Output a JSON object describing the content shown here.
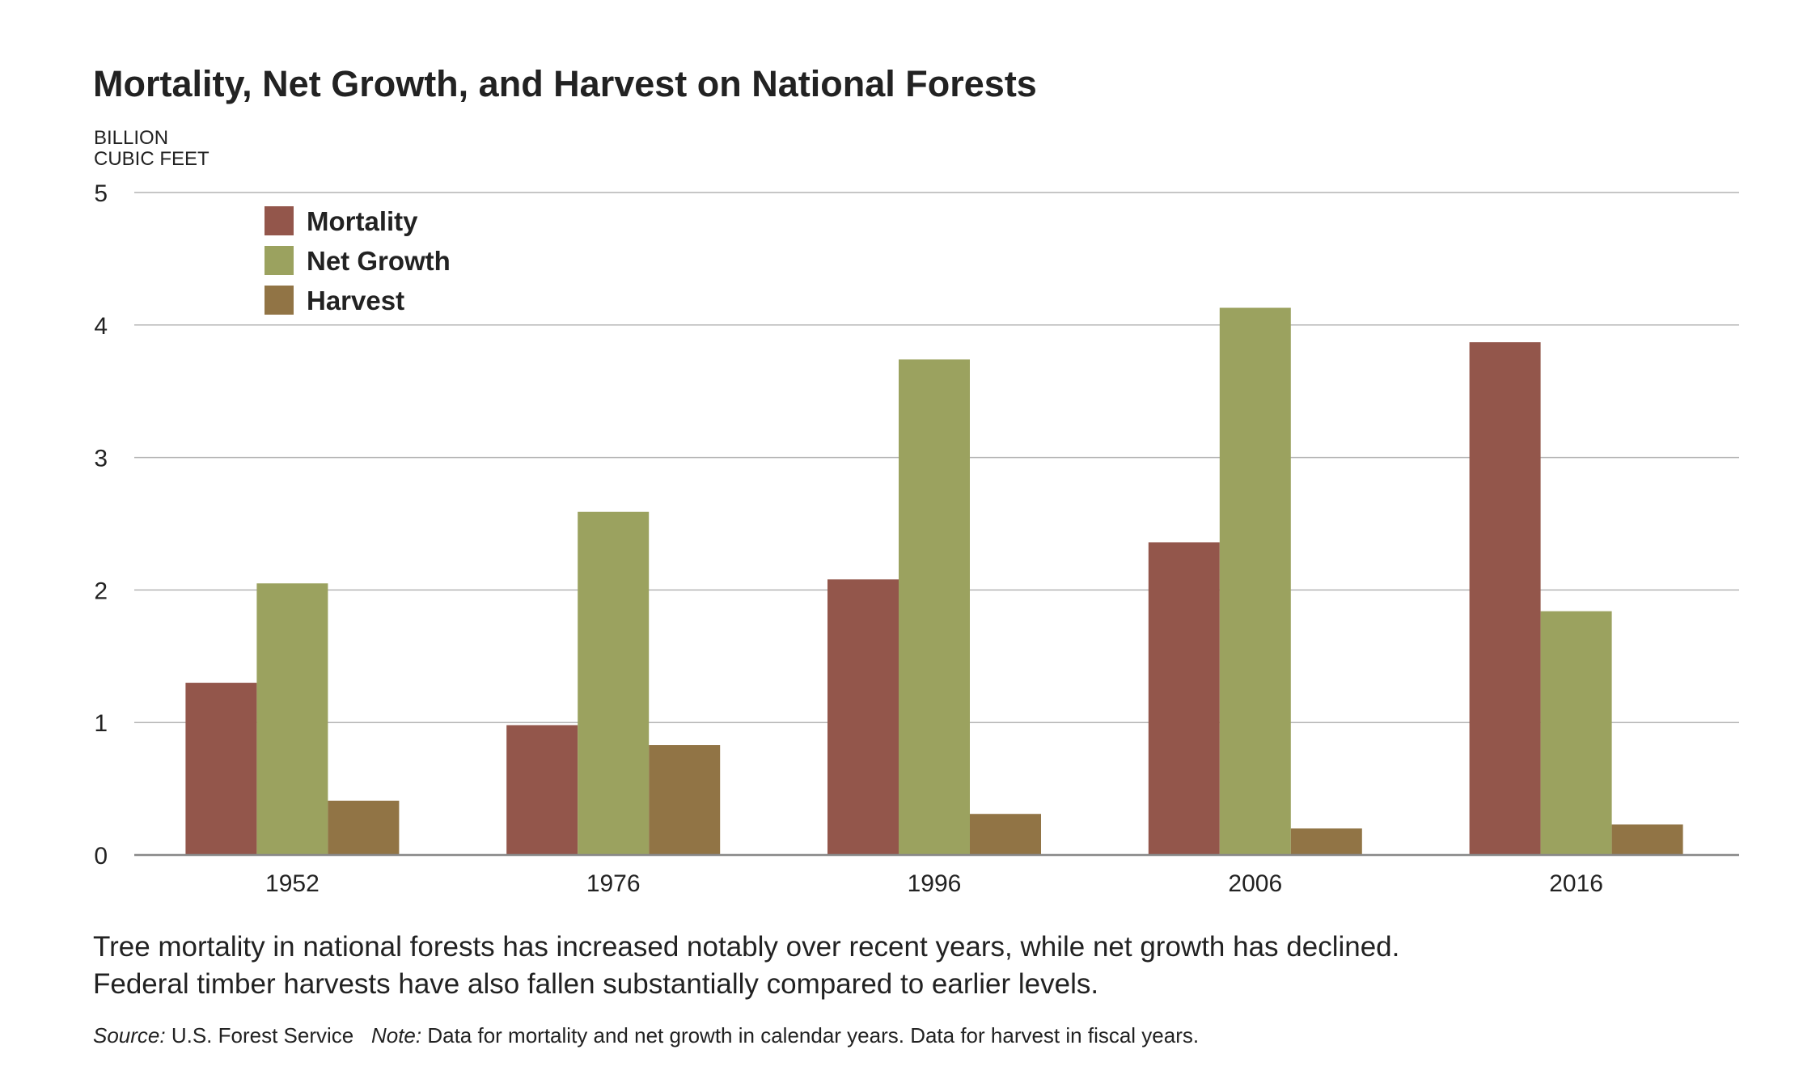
{
  "chart_data": {
    "type": "bar",
    "title": "Mortality, Net Growth, and Harvest on National Forests",
    "ylabel_lines": [
      "BILLION",
      "CUBIC FEET"
    ],
    "xlabel": "",
    "categories": [
      "1952",
      "1976",
      "1996",
      "2006",
      "2016"
    ],
    "series": [
      {
        "name": "Mortality",
        "color": "#93564b",
        "values": [
          1.3,
          0.98,
          2.08,
          2.36,
          3.87
        ]
      },
      {
        "name": "Net Growth",
        "color": "#9ba25f",
        "values": [
          2.05,
          2.59,
          3.74,
          4.13,
          1.84
        ]
      },
      {
        "name": "Harvest",
        "color": "#917445",
        "values": [
          0.41,
          0.83,
          0.31,
          0.2,
          0.23
        ]
      }
    ],
    "ylim": [
      0,
      5
    ],
    "yticks": [
      "0",
      "1",
      "2",
      "3",
      "4",
      "5"
    ],
    "grid": true,
    "legend_position": "top-left"
  },
  "caption": {
    "line1": "Tree mortality in national forests has increased notably over recent years, while net growth has declined.",
    "line2": "Federal timber harvests have also fallen substantially compared to earlier levels."
  },
  "source": {
    "source_label": "Source:",
    "source_text": "U.S. Forest Service",
    "note_label": "Note:",
    "note_text": "Data for mortality and net growth in calendar years. Data for harvest in fiscal years."
  },
  "colors": {
    "grid": "#b4b4b4",
    "axis": "#888888",
    "text": "#222222"
  }
}
